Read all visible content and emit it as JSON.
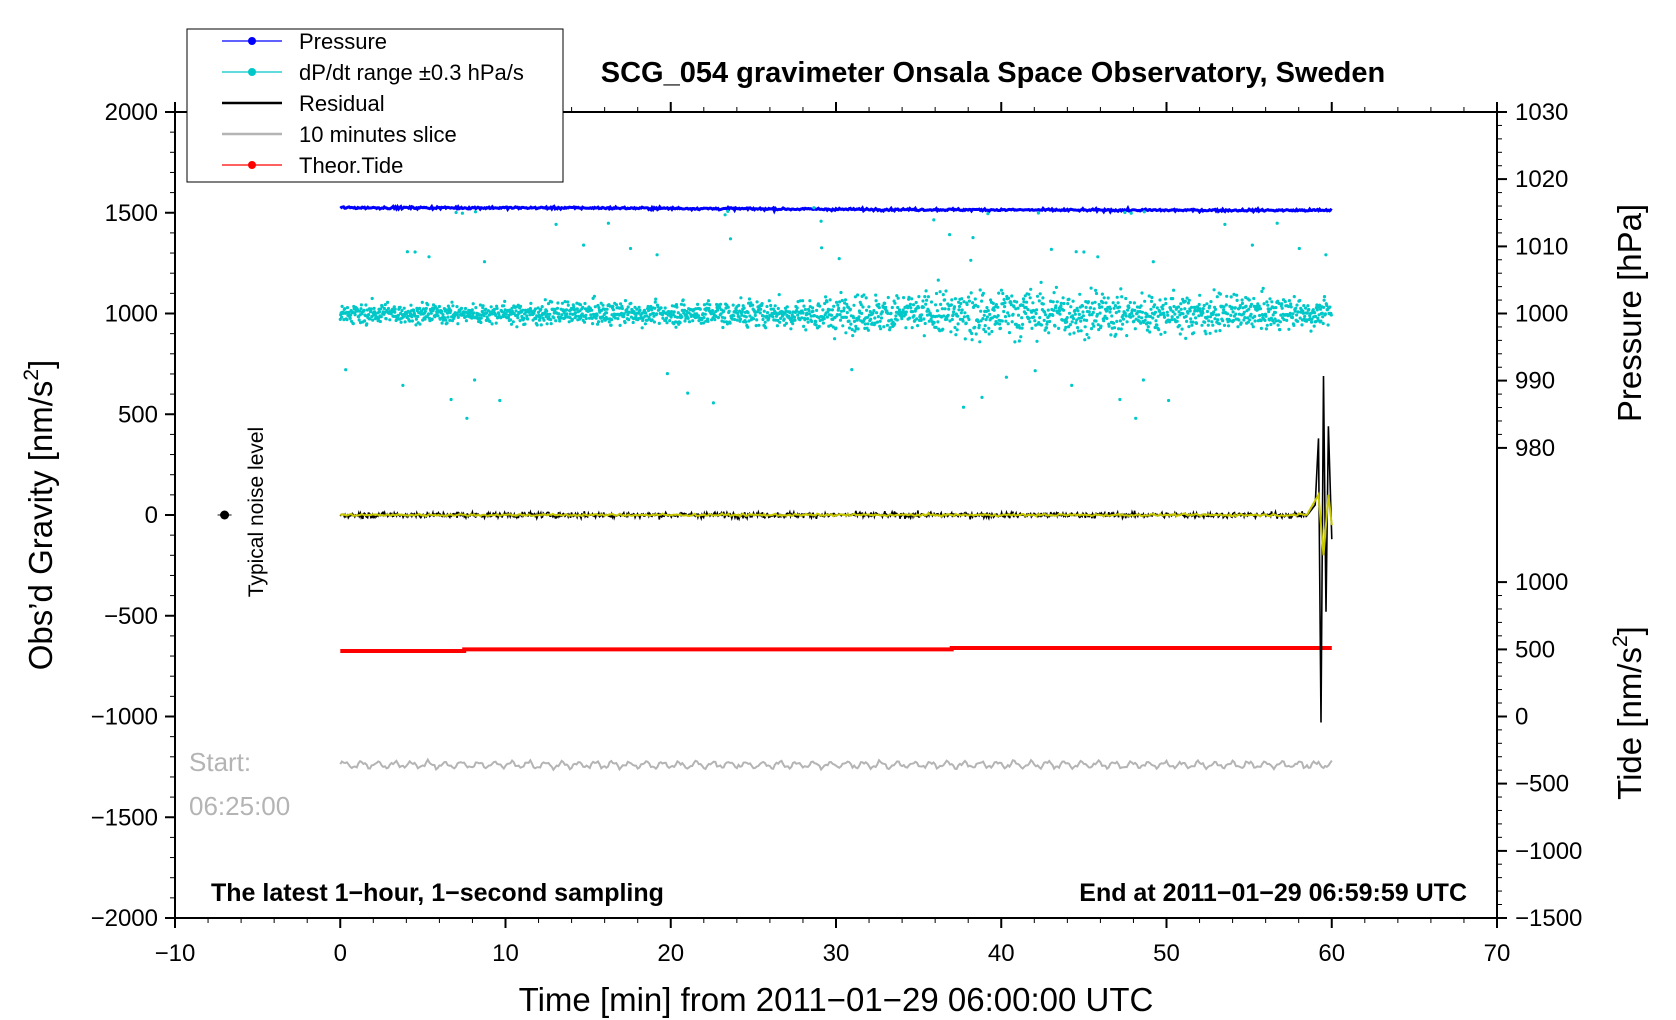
{
  "chart_data": {
    "type": "line",
    "title": "SCG_054 gravimeter Onsala Space Observatory, Sweden",
    "xlabel": "Time [min] from 2011−01−29 06:00:00 UTC",
    "ylabel_left": "Obs’d Gravity [nm/s",
    "ylabel_left_sup": "2",
    "ylabel_left_end": "]",
    "ylabel_right_pressure": "Pressure [hPa]",
    "ylabel_right_tide": "Tide [nm/s",
    "ylabel_right_tide_sup": "2",
    "ylabel_right_tide_end": "]",
    "xlim": [
      -10,
      70
    ],
    "ylim_left": [
      -2000,
      2000
    ],
    "x_ticks": [
      {
        "value": -10,
        "label": "−10"
      },
      {
        "value": 0,
        "label": "0"
      },
      {
        "value": 10,
        "label": "10"
      },
      {
        "value": 20,
        "label": "20"
      },
      {
        "value": 30,
        "label": "30"
      },
      {
        "value": 40,
        "label": "40"
      },
      {
        "value": 50,
        "label": "50"
      },
      {
        "value": 60,
        "label": "60"
      },
      {
        "value": 70,
        "label": "70"
      }
    ],
    "y_left_ticks": [
      {
        "value": 2000,
        "label": "2000"
      },
      {
        "value": 1500,
        "label": "1500"
      },
      {
        "value": 1000,
        "label": "1000"
      },
      {
        "value": 500,
        "label": "500"
      },
      {
        "value": 0,
        "label": "0"
      },
      {
        "value": -500,
        "label": "−500"
      },
      {
        "value": -1000,
        "label": "−1000"
      },
      {
        "value": -1500,
        "label": "−1500"
      },
      {
        "value": -2000,
        "label": "−2000"
      }
    ],
    "pressure_axis": {
      "ticks": [
        {
          "value": 1030,
          "label": "1030",
          "grav": 2000
        },
        {
          "value": 1020,
          "label": "1020",
          "grav": 1667
        },
        {
          "value": 1010,
          "label": "1010",
          "grav": 1333
        },
        {
          "value": 1000,
          "label": "1000",
          "grav": 1000
        },
        {
          "value": 990,
          "label": "990",
          "grav": 667
        },
        {
          "value": 980,
          "label": "980",
          "grav": 333
        }
      ]
    },
    "tide_axis": {
      "ticks": [
        {
          "value": 1000,
          "label": "1000",
          "grav": -333
        },
        {
          "value": 500,
          "label": "500",
          "grav": -667
        },
        {
          "value": 0,
          "label": "0",
          "grav": -1000
        },
        {
          "value": -500,
          "label": "−500",
          "grav": -1333
        },
        {
          "value": -1000,
          "label": "−1000",
          "grav": -1667
        },
        {
          "value": -1500,
          "label": "−1500",
          "grav": -2000
        }
      ]
    },
    "legend": [
      {
        "label": "Pressure",
        "color": "#0000ff",
        "marker": true
      },
      {
        "label": "dP/dt range ±0.3 hPa/s",
        "color": "#00c8c8",
        "marker": true
      },
      {
        "label": "Residual",
        "color": "#000000",
        "marker": false
      },
      {
        "label": "10 minutes slice",
        "color": "#b4b4b4",
        "marker": false
      },
      {
        "label": "Theor.Tide",
        "color": "#ff0000",
        "marker": true
      }
    ],
    "series": [
      {
        "name": "Pressure",
        "color": "#0000ff",
        "x": [
          0,
          15,
          30,
          45,
          60
        ],
        "y": [
          1525,
          1524,
          1517,
          1513,
          1512
        ]
      },
      {
        "name": "dP/dt range ±0.3 hPa/s",
        "color": "#00c8c8",
        "x_range": [
          0,
          60
        ],
        "center": 1000,
        "spread": 120
      },
      {
        "name": "Residual",
        "color": "#000000",
        "x": [
          0,
          58.5,
          59.0,
          59.2,
          59.35,
          59.5,
          59.65,
          59.8,
          60.0
        ],
        "y": [
          0,
          0,
          50,
          380,
          -1030,
          690,
          -480,
          440,
          -120
        ]
      },
      {
        "name": "Residual (smoothed)",
        "color": "#c8c800",
        "x": [
          0,
          58.5,
          59.2,
          59.5,
          59.8,
          60.0
        ],
        "y": [
          0,
          0,
          100,
          -200,
          100,
          -50
        ]
      },
      {
        "name": "10 minutes slice",
        "color": "#b4b4b4",
        "x_range": [
          0,
          60
        ],
        "y": -1240
      },
      {
        "name": "Theor.Tide",
        "color": "#ff0000",
        "x": [
          0,
          7.5,
          7.5,
          37,
          37,
          60
        ],
        "y": [
          -675,
          -675,
          -667,
          -667,
          -660,
          -660
        ]
      }
    ],
    "noise_marker": {
      "x": -7,
      "y": 0,
      "label": "Typical noise level"
    },
    "annotations": {
      "start_label": "Start:",
      "start_time": "06:25:00",
      "bottom_left": "The latest 1−hour, 1−second sampling",
      "bottom_right": "End at 2011−01−29 06:59:59 UTC"
    }
  }
}
